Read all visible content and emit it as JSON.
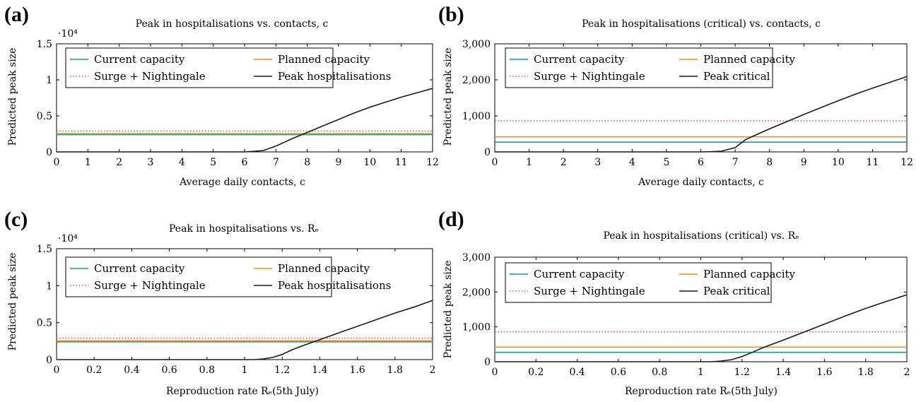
{
  "colors": {
    "current": "#1f9a8a",
    "planned": "#f0901e",
    "surge": "#d9556a",
    "peak": "#1a1a1a"
  },
  "chart_data": [
    {
      "panel": "(a)",
      "type": "line",
      "title": "Peak in hospitalisations vs. contacts, c",
      "xlabel": "Average daily contacts, c",
      "ylabel": "Predicted peak size",
      "multiplier": "·10⁴",
      "xlim": [
        0,
        12
      ],
      "ylim": [
        0,
        1.5
      ],
      "xticks": [
        0,
        1,
        2,
        3,
        4,
        5,
        6,
        7,
        8,
        9,
        10,
        11,
        12
      ],
      "xtick_labels": [
        "0",
        "1",
        "2",
        "3",
        "4",
        "5",
        "6",
        "7",
        "8",
        "9",
        "10",
        "11",
        "12"
      ],
      "yticks": [
        0,
        0.5,
        1,
        1.5
      ],
      "ytick_labels": [
        "0",
        "0.5",
        "1",
        "1.5"
      ],
      "legend": [
        "Current capacity",
        "Planned capacity",
        "Surge + Nightingale",
        "Peak hospitalisations"
      ],
      "series": [
        {
          "name": "Current capacity",
          "style": "solid",
          "color": "current",
          "y": 0.24
        },
        {
          "name": "Planned capacity",
          "style": "solid",
          "color": "planned",
          "y": 0.255
        },
        {
          "name": "Surge + Nightingale",
          "style": "dotted",
          "color": "surge",
          "y": 0.29
        },
        {
          "name": "Peak hospitalisations",
          "style": "solid",
          "color": "peak",
          "x": [
            0,
            6.0,
            6.3,
            6.6,
            7.0,
            7.5,
            8.0,
            8.5,
            9.0,
            9.5,
            10.0,
            10.5,
            11.0,
            11.5,
            12.0
          ],
          "y": [
            0,
            0,
            0.008,
            0.02,
            0.08,
            0.18,
            0.27,
            0.36,
            0.45,
            0.54,
            0.62,
            0.69,
            0.76,
            0.82,
            0.88
          ]
        }
      ]
    },
    {
      "panel": "(b)",
      "type": "line",
      "title": "Peak in hospitalisations (critical) vs. contacts, c",
      "xlabel": "Average daily contacts, c",
      "ylabel": "Predicted peak size",
      "multiplier": "",
      "xlim": [
        0,
        12
      ],
      "ylim": [
        0,
        3000
      ],
      "xticks": [
        0,
        1,
        2,
        3,
        4,
        5,
        6,
        7,
        8,
        9,
        10,
        11,
        12
      ],
      "xtick_labels": [
        "0",
        "1",
        "2",
        "3",
        "4",
        "5",
        "6",
        "7",
        "8",
        "9",
        "10",
        "11",
        "12"
      ],
      "yticks": [
        0,
        1000,
        2000,
        3000
      ],
      "ytick_labels": [
        "0",
        "1,000",
        "2,000",
        "3,000"
      ],
      "legend": [
        "Current capacity",
        "Planned capacity",
        "Surge + Nightingale",
        "Peak critical"
      ],
      "series": [
        {
          "name": "Current capacity",
          "style": "solid",
          "color": "current",
          "y": 270
        },
        {
          "name": "Planned capacity",
          "style": "solid",
          "color": "planned",
          "y": 420
        },
        {
          "name": "Surge + Nightingale",
          "style": "dotted",
          "color": "surge",
          "y": 860
        },
        {
          "name": "Peak critical",
          "style": "solid",
          "color": "peak",
          "x": [
            0,
            6.0,
            6.3,
            6.6,
            7.0,
            7.3,
            7.6,
            8.0,
            8.5,
            9.0,
            9.5,
            10.0,
            10.5,
            11.0,
            11.5,
            12.0
          ],
          "y": [
            0,
            0,
            5,
            20,
            120,
            340,
            470,
            640,
            840,
            1040,
            1230,
            1420,
            1600,
            1770,
            1930,
            2090
          ]
        }
      ]
    },
    {
      "panel": "(c)",
      "type": "line",
      "title": "Peak in hospitalisations vs. Rₑ",
      "xlabel": "Reproduction rate Rₑ(5th July)",
      "ylabel": "Predicted peak size",
      "multiplier": "·10⁴",
      "xlim": [
        0,
        2
      ],
      "ylim": [
        0,
        1.5
      ],
      "xticks": [
        0,
        0.2,
        0.4,
        0.6,
        0.8,
        1,
        1.2,
        1.4,
        1.6,
        1.8,
        2
      ],
      "xtick_labels": [
        "0",
        "0.2",
        "0.4",
        "0.6",
        "0.8",
        "1",
        "1.2",
        "1.4",
        "1.6",
        "1.8",
        "2"
      ],
      "yticks": [
        0,
        0.5,
        1,
        1.5
      ],
      "ytick_labels": [
        "0",
        "0.5",
        "1",
        "1.5"
      ],
      "legend": [
        "Current capacity",
        "Planned capacity",
        "Surge + Nightingale",
        "Peak hospitalisations"
      ],
      "series": [
        {
          "name": "Current capacity",
          "style": "solid",
          "color": "current",
          "y": 0.24
        },
        {
          "name": "Planned capacity",
          "style": "solid",
          "color": "planned",
          "y": 0.255
        },
        {
          "name": "Surge + Nightingale",
          "style": "dotted",
          "color": "surge",
          "y": 0.29
        },
        {
          "name": "Peak hospitalisations",
          "style": "solid",
          "color": "peak",
          "x": [
            0,
            1.05,
            1.1,
            1.15,
            1.2,
            1.25,
            1.3,
            1.4,
            1.5,
            1.6,
            1.7,
            1.8,
            1.9,
            2.0
          ],
          "y": [
            0,
            0,
            0.01,
            0.03,
            0.07,
            0.13,
            0.18,
            0.27,
            0.36,
            0.45,
            0.54,
            0.63,
            0.71,
            0.8
          ]
        }
      ]
    },
    {
      "panel": "(d)",
      "type": "line",
      "title": "Peak in hospitalisations (critical) vs. Rₑ",
      "xlabel": "Reproduction rate Rₑ(5th July)",
      "ylabel": "Predicted peak size",
      "multiplier": "",
      "xlim": [
        0,
        2
      ],
      "ylim": [
        0,
        3000
      ],
      "xticks": [
        0,
        0.2,
        0.4,
        0.6,
        0.8,
        1,
        1.2,
        1.4,
        1.6,
        1.8,
        2
      ],
      "xtick_labels": [
        "0",
        "0.2",
        "0.4",
        "0.6",
        "0.8",
        "1",
        "1.2",
        "1.4",
        "1.6",
        "1.8",
        "2"
      ],
      "yticks": [
        0,
        1000,
        2000,
        3000
      ],
      "ytick_labels": [
        "0",
        "1,000",
        "2,000",
        "3,000"
      ],
      "legend": [
        "Current capacity",
        "Planned capacity",
        "Surge + Nightingale",
        "Peak critical"
      ],
      "series": [
        {
          "name": "Current capacity",
          "style": "solid",
          "color": "current",
          "y": 270
        },
        {
          "name": "Planned capacity",
          "style": "solid",
          "color": "planned",
          "y": 420
        },
        {
          "name": "Surge + Nightingale",
          "style": "dotted",
          "color": "surge",
          "y": 860
        },
        {
          "name": "Peak critical",
          "style": "solid",
          "color": "peak",
          "x": [
            0,
            1.05,
            1.1,
            1.15,
            1.2,
            1.25,
            1.3,
            1.4,
            1.5,
            1.6,
            1.7,
            1.8,
            1.9,
            2.0
          ],
          "y": [
            0,
            0,
            20,
            60,
            150,
            270,
            400,
            620,
            850,
            1080,
            1310,
            1530,
            1730,
            1920
          ]
        }
      ]
    }
  ]
}
